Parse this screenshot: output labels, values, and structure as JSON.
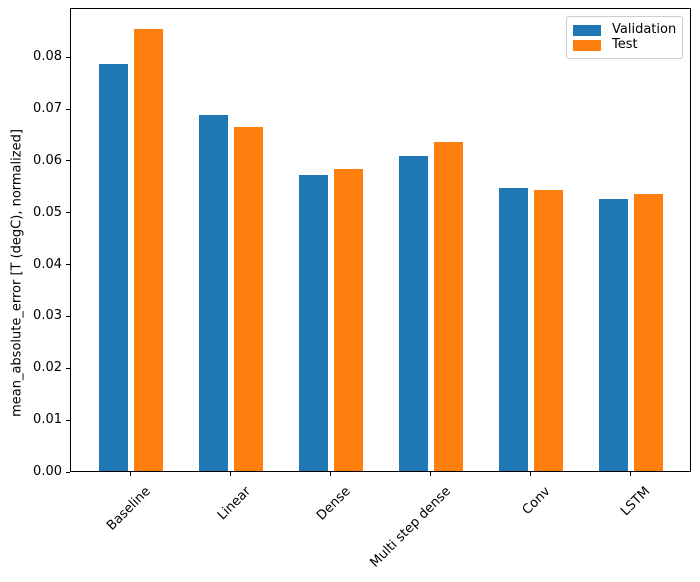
{
  "chart_data": {
    "type": "bar",
    "title": "",
    "categories": [
      "Baseline",
      "Linear",
      "Dense",
      "Multi step dense",
      "Conv",
      "LSTM"
    ],
    "series": [
      {
        "name": "Validation",
        "color": "#1f77b4",
        "values": [
          0.0785,
          0.0686,
          0.0571,
          0.0607,
          0.0545,
          0.0524
        ]
      },
      {
        "name": "Test",
        "color": "#ff7f0e",
        "values": [
          0.0852,
          0.0663,
          0.0583,
          0.0634,
          0.0543,
          0.0534
        ]
      }
    ],
    "xlabel": "",
    "ylabel": "mean_absolute_error [T (degC), normalized]",
    "ylim": [
      0,
      0.0895
    ],
    "ytick_labels": [
      "0.00",
      "0.01",
      "0.02",
      "0.03",
      "0.04",
      "0.05",
      "0.06",
      "0.07",
      "0.08"
    ],
    "xtick_rotation": 45,
    "grid": false,
    "legend": {
      "position": "upper right",
      "entries": [
        "Validation",
        "Test"
      ]
    }
  }
}
